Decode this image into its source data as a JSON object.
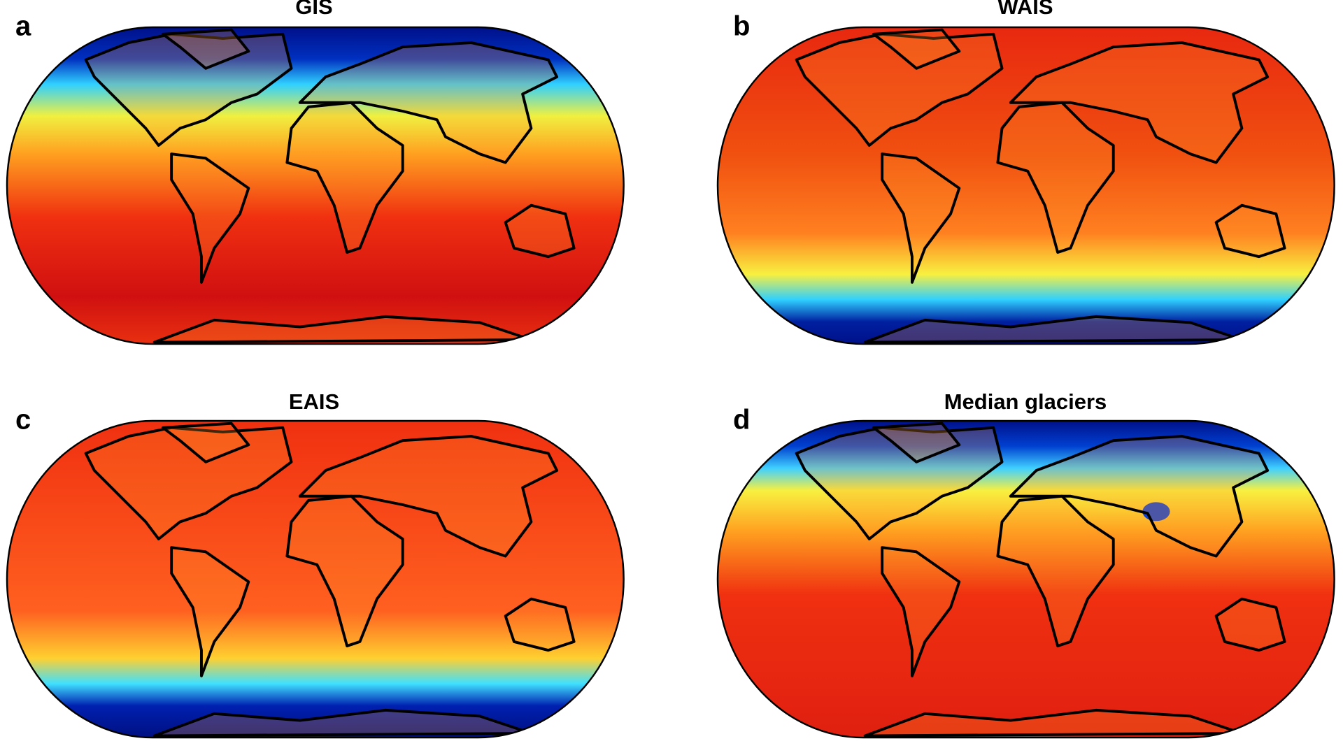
{
  "panels": [
    {
      "label": "a",
      "title": "GIS"
    },
    {
      "label": "b",
      "title": "WAIS"
    },
    {
      "label": "c",
      "title": "EAIS"
    },
    {
      "label": "d",
      "title": "Median glaciers"
    }
  ]
}
